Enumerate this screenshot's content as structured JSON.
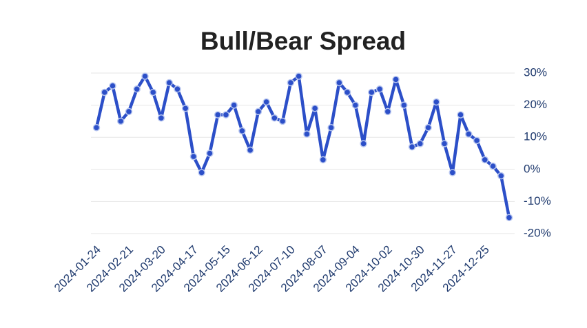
{
  "chart_data": {
    "type": "line",
    "title": "Bull/Bear Spread",
    "categories": [
      "2024-01-24",
      null,
      null,
      null,
      "2024-02-21",
      null,
      null,
      null,
      "2024-03-20",
      null,
      null,
      null,
      "2024-04-17",
      null,
      null,
      null,
      "2024-05-15",
      null,
      null,
      null,
      "2024-06-12",
      null,
      null,
      null,
      "2024-07-10",
      null,
      null,
      null,
      "2024-08-07",
      null,
      null,
      null,
      "2024-09-04",
      null,
      null,
      null,
      "2024-10-02",
      null,
      null,
      null,
      "2024-10-30",
      null,
      null,
      null,
      "2024-11-27",
      null,
      null,
      null,
      "2024-12-25",
      null,
      null,
      null
    ],
    "values": [
      13,
      24,
      26,
      15,
      18,
      25,
      29,
      24,
      16,
      27,
      25,
      19,
      4,
      -1,
      5,
      17,
      17,
      20,
      12,
      6,
      18,
      21,
      16,
      15,
      27,
      29,
      11,
      19,
      3,
      13,
      27,
      24,
      20,
      8,
      24,
      25,
      18,
      28,
      20,
      7,
      8,
      13,
      21,
      8,
      -1,
      17,
      11,
      9,
      3,
      1,
      -2,
      -15
    ],
    "color": "#2c4fc8",
    "ylim": [
      -20,
      30
    ],
    "yticks": [
      {
        "value": -20,
        "label": "-20%"
      },
      {
        "value": -10,
        "label": "-10%"
      },
      {
        "value": 0,
        "label": "0%"
      },
      {
        "value": 10,
        "label": "10%"
      },
      {
        "value": 20,
        "label": "20%"
      },
      {
        "value": 30,
        "label": "30%"
      }
    ],
    "grid": true
  }
}
